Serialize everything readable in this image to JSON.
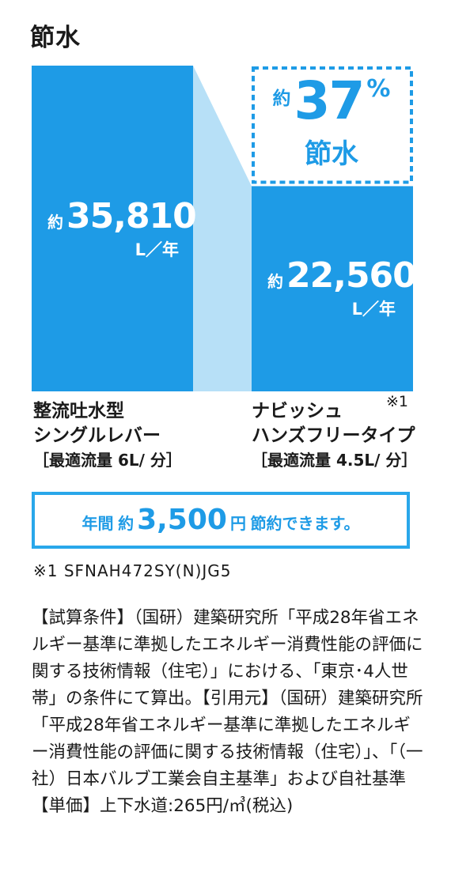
{
  "title": "節水",
  "chart_data": {
    "type": "bar",
    "categories": [
      "整流吐水型 シングルレバー",
      "ナビッシュ ハンズフリータイプ"
    ],
    "values": [
      35810,
      22560
    ],
    "unit": "L／年",
    "bars": [
      {
        "prefix": "約",
        "value_label": "35,810",
        "unit": "L／年",
        "label_lines": [
          "整流吐水型",
          "シングルレバー"
        ],
        "flow": "［最適流量 6L/ 分］"
      },
      {
        "prefix": "約",
        "value_label": "22,560",
        "unit": "L／年",
        "label_lines": [
          "ナビッシュ",
          "ハンズフリータイプ"
        ],
        "flow": "［最適流量 4.5L/ 分］",
        "note": "※1"
      }
    ],
    "annotation": {
      "prefix": "約",
      "value": "37",
      "percent": "%",
      "label": "節水"
    },
    "colors": {
      "bar": "#1e9be6",
      "connector": "#b7e0f7",
      "accent": "#1e9be6"
    }
  },
  "savings": {
    "prefix": "年間",
    "approx": "約",
    "value": "3,500",
    "unit": "円",
    "suffix": "節約できます。"
  },
  "footnote": "※1 SFNAH472SY(N)JG5",
  "conditions": "【試算条件】（国研）建築研究所「平成28年省エネルギー基準に準拠したエネルギー消費性能の評価に関する技術情報（住宅）」における、「東京･4人世帯」の条件にて算出。【引用元】（国研）建築研究所「平成28年省エネルギー基準に準拠したエネルギー消費性能の評価に関する技術情報（住宅）」、「（一社）日本バルブ工業会自主基準」および自社基準【単価】上下水道:265円/㎥(税込)"
}
